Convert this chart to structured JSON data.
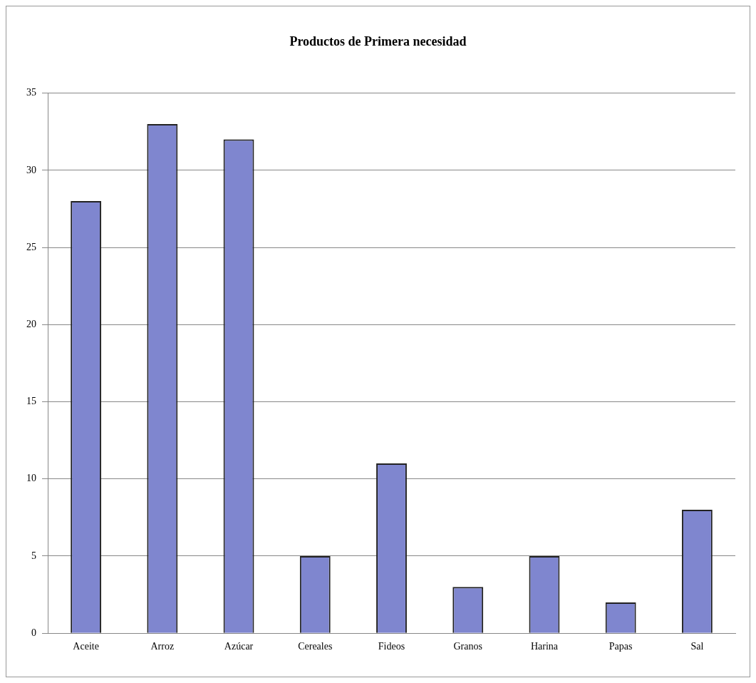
{
  "chart_data": {
    "type": "bar",
    "title": "Productos de Primera necesidad",
    "categories": [
      "Aceite",
      "Arroz",
      "Azúcar",
      "Cereales",
      "Fideos",
      "Granos",
      "Harina",
      "Papas",
      "Sal"
    ],
    "values": [
      28,
      33,
      32,
      5,
      11,
      3,
      5,
      2,
      8
    ],
    "color": "#7f86cf",
    "ylim": [
      0,
      35
    ],
    "yticks": [
      0,
      5,
      10,
      15,
      20,
      25,
      30,
      35
    ],
    "grid": "y"
  }
}
